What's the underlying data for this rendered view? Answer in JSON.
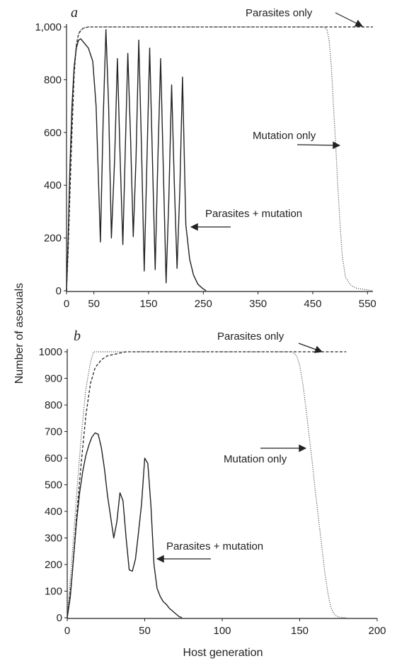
{
  "figure": {
    "ylabel": "Number of asexuals",
    "xlabel": "Host generation"
  },
  "chart_data": [
    {
      "type": "line",
      "panel": "a",
      "xlim": [
        0,
        560
      ],
      "ylim": [
        0,
        1000
      ],
      "x_ticks": [
        0,
        50,
        150,
        250,
        350,
        450,
        550
      ],
      "y_ticks": [
        0,
        200,
        400,
        600,
        800,
        1000
      ],
      "y_tick_labels": [
        "0",
        "200",
        "400",
        "600",
        "800",
        "1,000"
      ],
      "grid": false,
      "series": [
        {
          "name": "Parasites only",
          "style": "dashed",
          "x": [
            0,
            3,
            6,
            10,
            14,
            18,
            22,
            30,
            40,
            60,
            100,
            200,
            300,
            400,
            500,
            560
          ],
          "y": [
            0,
            150,
            350,
            600,
            820,
            930,
            975,
            995,
            1000,
            1000,
            1000,
            1000,
            1000,
            1000,
            1000,
            1000
          ]
        },
        {
          "name": "Mutation only",
          "style": "dotted",
          "x": [
            0,
            3,
            6,
            10,
            14,
            18,
            24,
            30,
            40,
            100,
            200,
            300,
            400,
            470,
            476,
            480,
            484,
            488,
            492,
            496,
            500,
            504,
            510,
            520,
            530,
            545,
            560
          ],
          "y": [
            0,
            200,
            420,
            650,
            840,
            940,
            985,
            995,
            1000,
            1000,
            1000,
            1000,
            1000,
            1000,
            990,
            950,
            850,
            700,
            550,
            390,
            250,
            130,
            50,
            20,
            10,
            5,
            0
          ]
        },
        {
          "name": "Parasites + mutation",
          "x": [
            0,
            3,
            6,
            10,
            14,
            18,
            22,
            26,
            32,
            40,
            48,
            54,
            58,
            62,
            67,
            72,
            77,
            82,
            88,
            93,
            98,
            103,
            107,
            112,
            117,
            122,
            127,
            132,
            137,
            142,
            147,
            152,
            157,
            162,
            167,
            172,
            177,
            182,
            187,
            192,
            197,
            202,
            207,
            212,
            218,
            225,
            232,
            240,
            248,
            255
          ],
          "y": [
            0,
            200,
            450,
            700,
            850,
            920,
            950,
            955,
            940,
            920,
            870,
            700,
            450,
            185,
            650,
            990,
            700,
            200,
            500,
            880,
            500,
            175,
            500,
            900,
            580,
            205,
            500,
            950,
            550,
            75,
            500,
            920,
            500,
            80,
            500,
            880,
            450,
            30,
            350,
            780,
            410,
            85,
            380,
            810,
            250,
            120,
            60,
            25,
            10,
            0
          ]
        }
      ],
      "annotations": [
        {
          "text": "Parasites only",
          "target_series": "Parasites only"
        },
        {
          "text": "Mutation only",
          "target_series": "Mutation only"
        },
        {
          "text": "Parasites + mutation",
          "target_series": "Parasites + mutation"
        }
      ]
    },
    {
      "type": "line",
      "panel": "b",
      "xlim": [
        0,
        200
      ],
      "ylim": [
        0,
        1000
      ],
      "x_ticks": [
        0,
        50,
        100,
        150,
        200
      ],
      "y_ticks": [
        0,
        100,
        200,
        300,
        400,
        500,
        600,
        700,
        800,
        900,
        1000
      ],
      "y_tick_labels": [
        "0",
        "100",
        "200",
        "300",
        "400",
        "500",
        "600",
        "700",
        "800",
        "900",
        "1000"
      ],
      "grid": false,
      "series": [
        {
          "name": "Parasites only",
          "style": "dashed",
          "x": [
            0,
            3,
            6,
            9,
            12,
            15,
            18,
            22,
            26,
            30,
            34,
            38,
            40,
            60,
            100,
            150,
            180
          ],
          "y": [
            0,
            150,
            380,
            580,
            760,
            880,
            940,
            970,
            985,
            990,
            995,
            1000,
            1000,
            1000,
            1000,
            1000,
            1000
          ]
        },
        {
          "name": "Mutation only",
          "style": "dotted",
          "x": [
            0,
            3,
            6,
            9,
            12,
            15,
            17,
            20,
            40,
            80,
            120,
            145,
            148,
            150,
            152,
            154,
            156,
            158,
            160,
            162,
            164,
            166,
            168,
            170,
            172,
            174,
            176,
            180
          ],
          "y": [
            0,
            220,
            460,
            680,
            860,
            960,
            1000,
            1000,
            1000,
            1000,
            1000,
            1000,
            985,
            950,
            880,
            790,
            690,
            590,
            480,
            380,
            280,
            180,
            100,
            40,
            15,
            5,
            2,
            0
          ]
        },
        {
          "name": "Parasites + mutation",
          "x": [
            0,
            2,
            4,
            6,
            8,
            10,
            12,
            14,
            16,
            18,
            20,
            22,
            24,
            26,
            28,
            30,
            32,
            34,
            36,
            38,
            40,
            42,
            44,
            46,
            48,
            50,
            52,
            54,
            56,
            58,
            60,
            62,
            64,
            66,
            68,
            70,
            72,
            74
          ],
          "y": [
            0,
            80,
            220,
            360,
            470,
            550,
            610,
            650,
            680,
            695,
            690,
            640,
            560,
            460,
            380,
            300,
            360,
            470,
            440,
            300,
            180,
            175,
            220,
            320,
            430,
            600,
            580,
            420,
            200,
            110,
            80,
            60,
            50,
            35,
            25,
            15,
            5,
            0
          ]
        }
      ],
      "annotations": [
        {
          "text": "Parasites only",
          "target_series": "Parasites only"
        },
        {
          "text": "Mutation only",
          "target_series": "Mutation only"
        },
        {
          "text": "Parasites + mutation",
          "target_series": "Parasites + mutation"
        }
      ]
    }
  ]
}
